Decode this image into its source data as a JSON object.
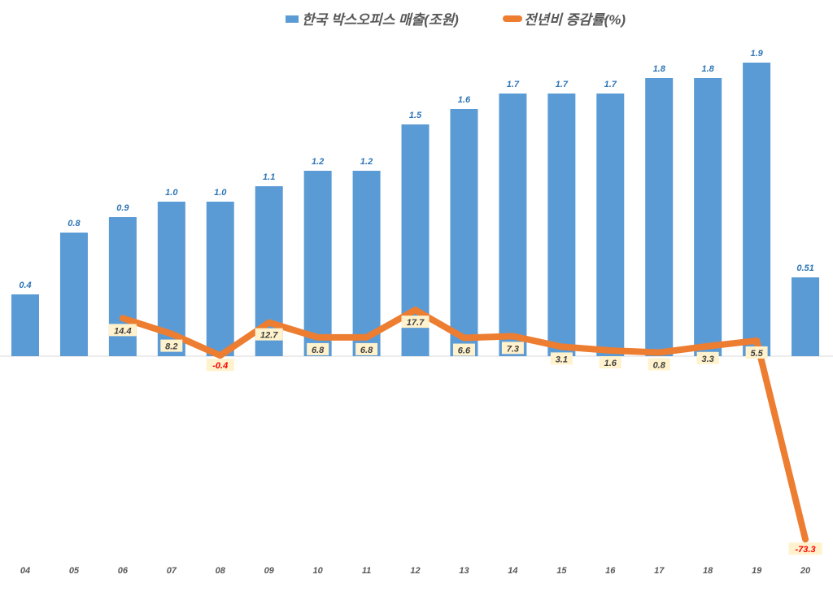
{
  "chart_data": {
    "type": "bar+line",
    "categories": [
      "04",
      "05",
      "06",
      "07",
      "08",
      "09",
      "10",
      "11",
      "12",
      "13",
      "14",
      "15",
      "16",
      "17",
      "18",
      "19",
      "20"
    ],
    "series": [
      {
        "name": "한국 박스오피스 매출(조원)",
        "type": "bar",
        "axis": "primary",
        "color": "#5B9BD5",
        "values": [
          0.4,
          0.8,
          0.9,
          1.0,
          1.0,
          1.1,
          1.2,
          1.2,
          1.5,
          1.6,
          1.7,
          1.7,
          1.7,
          1.8,
          1.8,
          1.9,
          0.51
        ],
        "labels": [
          "0.4",
          "0.8",
          "0.9",
          "1.0",
          "1.0",
          "1.1",
          "1.2",
          "1.2",
          "1.5",
          "1.6",
          "1.7",
          "1.7",
          "1.7",
          "1.8",
          "1.8",
          "1.9",
          "0.51"
        ]
      },
      {
        "name": "전년비 증감률(%)",
        "type": "line",
        "axis": "secondary",
        "color": "#ED7D31",
        "values": [
          null,
          null,
          14.4,
          8.2,
          -0.4,
          12.7,
          6.8,
          6.8,
          17.7,
          6.6,
          7.3,
          3.1,
          1.6,
          0.8,
          3.3,
          5.5,
          -73.3
        ]
      }
    ],
    "legend": "top",
    "grid": false,
    "label_colors": {
      "bar": "#2E75B6",
      "line_positive": "#404040",
      "line_negative": "#FF0000",
      "line_label_bg": "#FFF2CC"
    }
  }
}
